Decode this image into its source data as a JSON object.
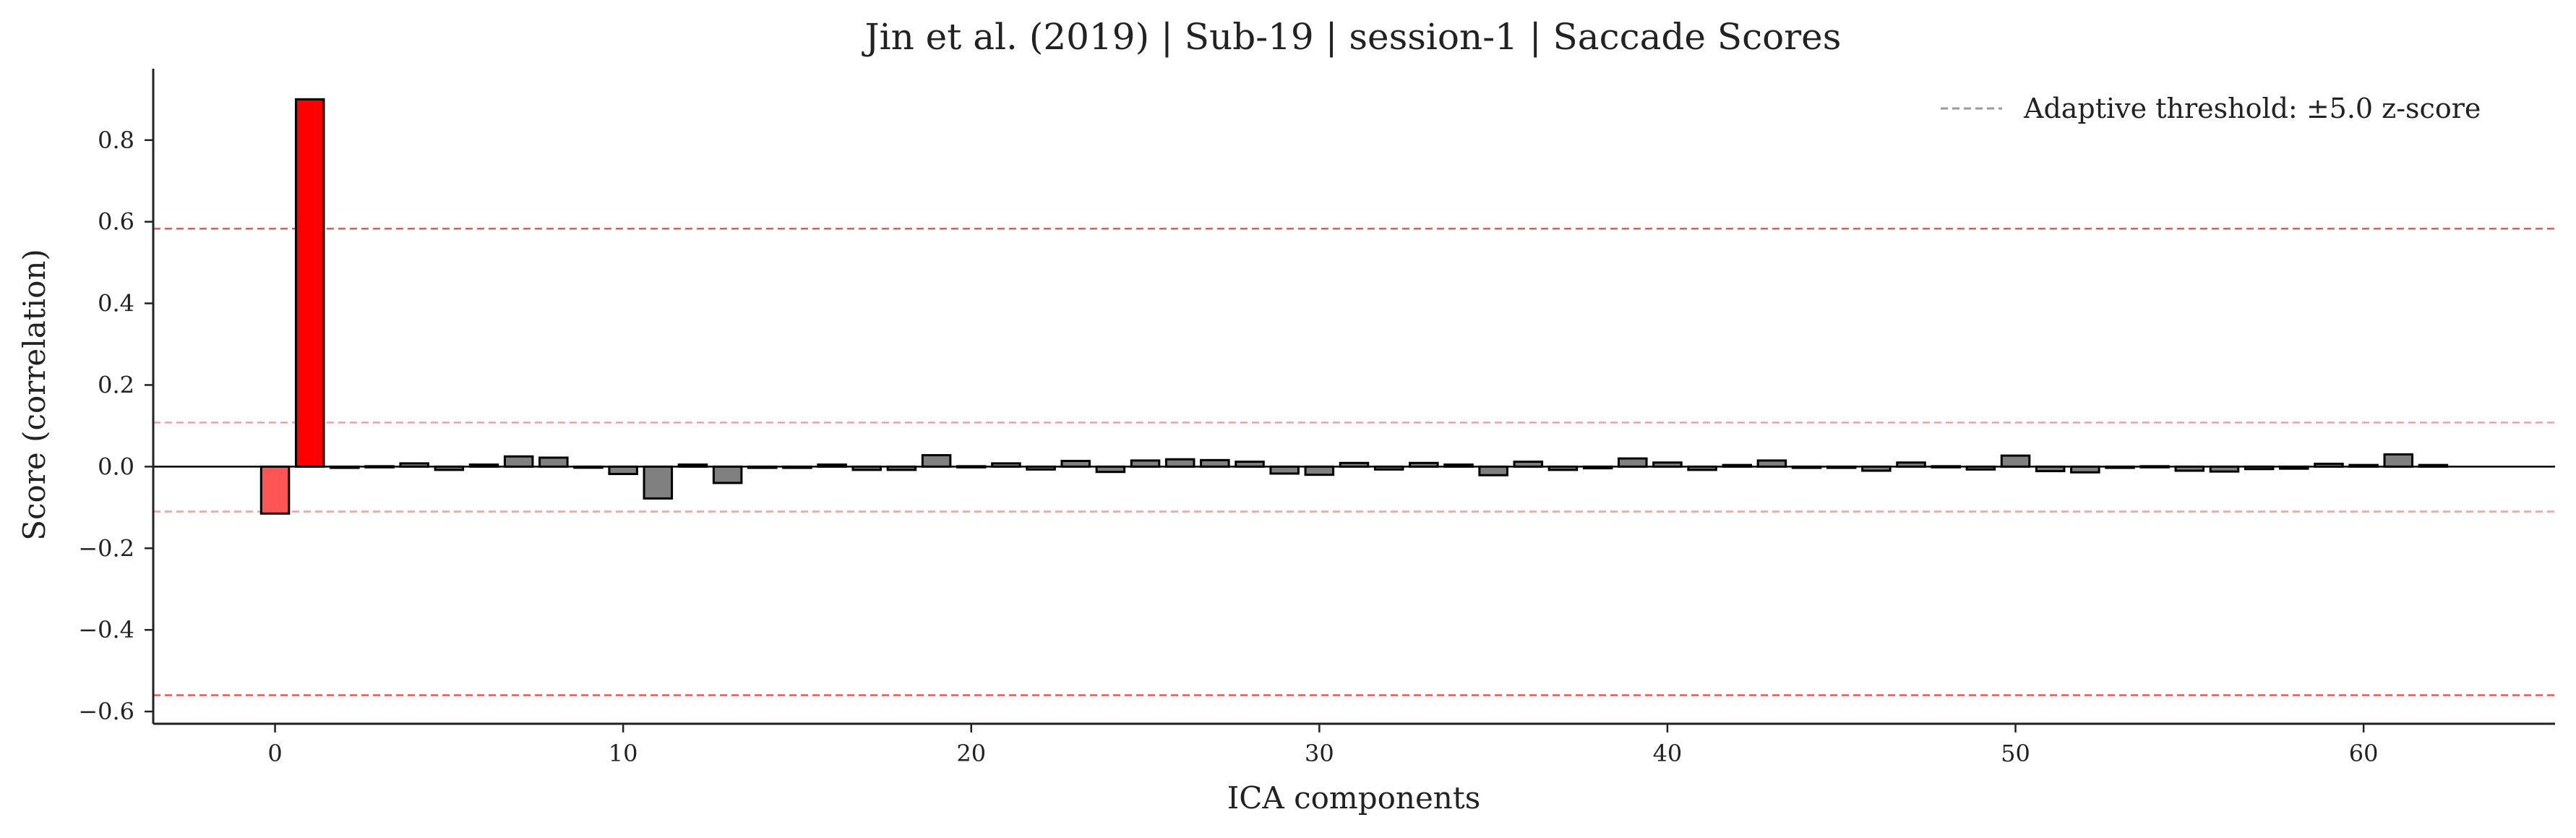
{
  "chart_data": {
    "type": "bar",
    "title": "Jin et al. (2019) | Sub-19 | session-1 | Saccade Scores",
    "xlabel": "ICA components",
    "ylabel": "Score (correlation)",
    "xlim": [
      -3.5,
      65.5
    ],
    "ylim": [
      -0.63,
      0.975
    ],
    "xticks": [
      0,
      10,
      20,
      30,
      40,
      50,
      60
    ],
    "xtick_labels": [
      "0",
      "10",
      "20",
      "30",
      "40",
      "50",
      "60"
    ],
    "yticks": [
      -0.6,
      -0.4,
      -0.2,
      0.0,
      0.2,
      0.4,
      0.6,
      0.8
    ],
    "ytick_labels": [
      "−0.6",
      "−0.4",
      "−0.2",
      "0.0",
      "0.2",
      "0.4",
      "0.6",
      "0.8"
    ],
    "components": [
      0,
      1,
      2,
      3,
      4,
      5,
      6,
      7,
      8,
      9,
      10,
      11,
      12,
      13,
      14,
      15,
      16,
      17,
      18,
      19,
      20,
      21,
      22,
      23,
      24,
      25,
      26,
      27,
      28,
      29,
      30,
      31,
      32,
      33,
      34,
      35,
      36,
      37,
      38,
      39,
      40,
      41,
      42,
      43,
      44,
      45,
      46,
      47,
      48,
      49,
      50,
      51,
      52,
      53,
      54,
      55,
      56,
      57,
      58,
      59,
      60,
      61,
      62
    ],
    "values": [
      -0.115,
      0.9,
      -0.003,
      0.001,
      0.008,
      -0.008,
      0.005,
      0.025,
      0.022,
      -0.002,
      -0.018,
      -0.078,
      0.005,
      -0.04,
      -0.003,
      -0.003,
      0.005,
      -0.008,
      -0.008,
      0.028,
      0.001,
      0.008,
      -0.007,
      0.014,
      -0.013,
      0.015,
      0.018,
      0.016,
      0.012,
      -0.017,
      -0.02,
      0.009,
      -0.007,
      0.009,
      0.005,
      -0.021,
      0.012,
      -0.008,
      -0.004,
      0.02,
      0.01,
      -0.008,
      0.004,
      0.015,
      -0.003,
      -0.003,
      -0.01,
      0.01,
      0.001,
      -0.007,
      0.027,
      -0.011,
      -0.014,
      -0.003,
      0.001,
      -0.01,
      -0.012,
      -0.006,
      -0.005,
      0.007,
      0.004,
      0.03,
      0.004
    ],
    "bar_colors": {
      "default": "#808080",
      "flagged_strong": "#ff0000",
      "flagged_weak": "#ff5555",
      "edge": "#000000"
    },
    "flagged": [
      {
        "component": 0,
        "color": "flagged_weak"
      },
      {
        "component": 1,
        "color": "flagged_strong"
      }
    ],
    "threshold_lines": {
      "outer": [
        0.583,
        -0.56
      ],
      "inner": [
        0.108,
        -0.11
      ],
      "outer_color": "#ee5555",
      "inner_color": "#f2a0a0"
    },
    "legend": {
      "label": "Adaptive threshold: ±5.0 z-score",
      "line_color": "#999999",
      "placement": "top-right"
    },
    "grid": false
  }
}
